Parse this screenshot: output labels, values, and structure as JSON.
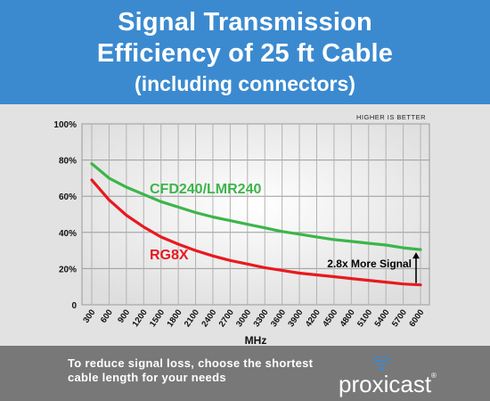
{
  "header": {
    "title_line1": "Signal Transmission",
    "title_line2": "Efficiency of 25 ft Cable",
    "subtitle": "(including connectors)"
  },
  "chart_data": {
    "type": "line",
    "note_top_right": "HIGHER IS BETTER",
    "xlabel": "MHz",
    "ylabel": "",
    "x": [
      300,
      600,
      900,
      1200,
      1500,
      1800,
      2100,
      2400,
      2700,
      3000,
      3300,
      3600,
      3900,
      4200,
      4500,
      4800,
      5100,
      5400,
      5700,
      6000
    ],
    "ylim": [
      0,
      100
    ],
    "y_ticks": [
      0,
      20,
      40,
      60,
      80,
      100
    ],
    "y_tick_labels": [
      "0",
      "20%",
      "40%",
      "60%",
      "80%",
      "100%"
    ],
    "series": [
      {
        "name": "CFD240/LMR240",
        "color": "#3cb54a",
        "values": [
          78,
          70,
          65,
          61,
          57,
          54,
          51,
          48.5,
          46.5,
          44.5,
          42.5,
          40.5,
          39,
          37.5,
          36,
          35,
          34,
          33,
          31.5,
          30.5
        ]
      },
      {
        "name": "RG8X",
        "color": "#e8191f",
        "values": [
          69,
          58,
          49.5,
          43,
          37.5,
          33.5,
          30,
          27,
          24.5,
          22.5,
          20.5,
          19,
          17.5,
          16.5,
          15.5,
          14.5,
          13.5,
          12.5,
          11.5,
          11
        ]
      }
    ],
    "annotation": "2.8x More Signal",
    "grid": true
  },
  "footer": {
    "note": "To reduce signal loss, choose the shortest cable length for your needs",
    "brand": "proxicast",
    "brand_mark": "®"
  },
  "colors": {
    "header_bg": "#3b8ad0",
    "panel_bg": "#e2e2e2",
    "footer_bg": "#787878",
    "plot_border": "#999999"
  }
}
